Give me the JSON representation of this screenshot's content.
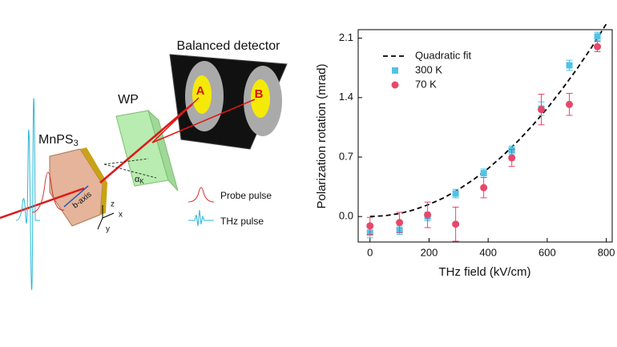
{
  "diagram": {
    "detector": "Balanced detector",
    "spot_a": "A",
    "spot_b": "B",
    "waveplate": "WP",
    "sample": {
      "name": "MnPS",
      "sub": "3"
    },
    "axis_label": "b-axis",
    "angle": {
      "symbol": "α",
      "sub": "K"
    },
    "axes": {
      "z": "z",
      "x": "x",
      "y": "y"
    },
    "legend": {
      "probe": "Probe pulse",
      "thz": "THz pulse"
    }
  },
  "chart_data": {
    "type": "scatter",
    "xlabel": "THz field (kV/cm)",
    "ylabel": "Polarization rotation (mrad)",
    "xlim": [
      -40,
      820
    ],
    "ylim": [
      -0.3,
      2.2
    ],
    "xticks": [
      0,
      200,
      400,
      600,
      800
    ],
    "yticks": [
      {
        "value": 0,
        "label": "0.0"
      },
      0.7,
      1.4,
      2.1
    ],
    "legend": "upper left",
    "series": [
      {
        "name": "Quadratic fit",
        "type": "line",
        "style": "dashed",
        "color": "#000000",
        "x": [
          0,
          50,
          100,
          150,
          200,
          250,
          300,
          350,
          400,
          450,
          500,
          550,
          600,
          650,
          700,
          750,
          800
        ],
        "values": [
          0,
          0.009,
          0.035,
          0.08,
          0.142,
          0.221,
          0.319,
          0.434,
          0.566,
          0.717,
          0.885,
          1.071,
          1.274,
          1.496,
          1.735,
          1.991,
          2.266
        ]
      },
      {
        "name": "300 K",
        "type": "scatter",
        "marker": "square",
        "color": "#4fc3e8",
        "x": [
          0,
          100,
          195,
          290,
          385,
          480,
          580,
          675,
          770
        ],
        "values": [
          -0.19,
          -0.16,
          0.0,
          0.27,
          0.51,
          0.78,
          1.27,
          1.78,
          2.12
        ],
        "errors": [
          0.06,
          0.05,
          0.05,
          0.05,
          0.05,
          0.05,
          0.08,
          0.06,
          0.05
        ]
      },
      {
        "name": "70 K",
        "type": "scatter",
        "marker": "circle",
        "color": "#e8476a",
        "x": [
          0,
          100,
          195,
          290,
          385,
          480,
          580,
          675,
          770
        ],
        "values": [
          -0.11,
          -0.07,
          0.02,
          -0.09,
          0.34,
          0.69,
          1.26,
          1.32,
          2.0
        ],
        "errors": [
          0.1,
          0.12,
          0.15,
          0.2,
          0.12,
          0.1,
          0.18,
          0.13,
          0.06
        ]
      }
    ]
  }
}
